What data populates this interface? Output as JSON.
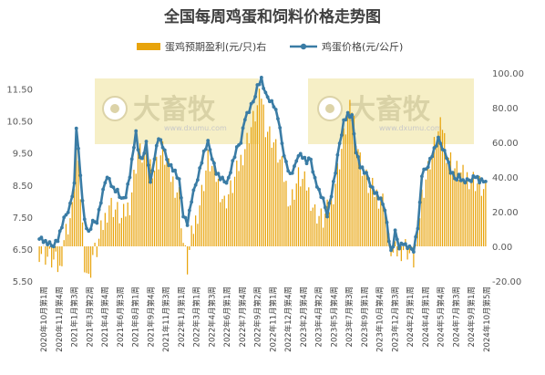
{
  "chart_data": {
    "type": "bar+line",
    "title": "全国每周鸡蛋和饲料价格走势图",
    "legend": {
      "bar": "蛋鸡预期盈利(元/只)右",
      "line": "鸡蛋价格(元/公斤)",
      "bar_color": "#e8a40c",
      "line_color": "#3a7ca5"
    },
    "watermark": {
      "brand": "大畜牧",
      "url": "www.dxumu.com"
    },
    "left_axis": {
      "min": 5.5,
      "max": 12,
      "ticks": [
        "11.50",
        "10.50",
        "9.50",
        "8.50",
        "7.50",
        "6.50",
        "5.50"
      ],
      "tick_values": [
        11.5,
        10.5,
        9.5,
        8.5,
        7.5,
        6.5,
        5.5
      ]
    },
    "right_axis": {
      "min": -20,
      "max": 100,
      "ticks": [
        "100.00",
        "80.00",
        "60.00",
        "40.00",
        "20.00",
        "0.00",
        "-20.00"
      ],
      "tick_values": [
        100,
        80,
        60,
        40,
        20,
        0,
        -20
      ]
    },
    "x_labels": [
      "2020年10月第1周",
      "2020年11月第4周",
      "2021年1月第3周",
      "2021年3月第2周",
      "2021年4月第4周",
      "2021年6月第3周",
      "2021年8月第1周",
      "2021年9月第4周",
      "2021年11月第3周",
      "2022年1月第1周",
      "2022年3月第1周",
      "2022年4月第3周",
      "2022年6月第1周",
      "2022年7月第4周",
      "2022年9月第2周",
      "2022年11月第1周",
      "2022年12月第4周",
      "2023年2月第4周",
      "2023年4月第2周",
      "2023年5月第4周",
      "2023年7月第3周",
      "2023年9月第1周",
      "2023年10月第4周",
      "2023年12月第3周",
      "2024年2月第1周",
      "2024年4月第1周",
      "2024年5月第4周",
      "2024年7月第3周",
      "2024年9月第1周",
      "2024年10月第5周"
    ],
    "weeks": 218,
    "egg_price": [
      [
        0,
        6.9
      ],
      [
        3,
        6.7
      ],
      [
        6,
        6.6
      ],
      [
        9,
        6.8
      ],
      [
        12,
        7.4
      ],
      [
        15,
        7.9
      ],
      [
        17,
        8.5
      ],
      [
        18,
        10.3
      ],
      [
        20,
        8.8
      ],
      [
        22,
        7.4
      ],
      [
        24,
        7.0
      ],
      [
        26,
        7.3
      ],
      [
        28,
        7.4
      ],
      [
        30,
        8.0
      ],
      [
        32,
        8.6
      ],
      [
        34,
        8.7
      ],
      [
        36,
        8.4
      ],
      [
        38,
        8.3
      ],
      [
        40,
        8.0
      ],
      [
        42,
        8.2
      ],
      [
        44,
        8.8
      ],
      [
        46,
        9.7
      ],
      [
        47,
        10.1
      ],
      [
        48,
        9.6
      ],
      [
        50,
        9.3
      ],
      [
        52,
        9.8
      ],
      [
        54,
        8.5
      ],
      [
        56,
        9.4
      ],
      [
        58,
        10.0
      ],
      [
        60,
        9.7
      ],
      [
        62,
        9.3
      ],
      [
        64,
        9.1
      ],
      [
        66,
        8.9
      ],
      [
        68,
        8.6
      ],
      [
        70,
        7.6
      ],
      [
        72,
        7.3
      ],
      [
        74,
        8.0
      ],
      [
        76,
        8.5
      ],
      [
        78,
        9.0
      ],
      [
        80,
        9.5
      ],
      [
        82,
        9.8
      ],
      [
        84,
        9.4
      ],
      [
        86,
        8.9
      ],
      [
        88,
        8.7
      ],
      [
        90,
        8.6
      ],
      [
        92,
        8.7
      ],
      [
        94,
        9.2
      ],
      [
        96,
        9.6
      ],
      [
        98,
        9.9
      ],
      [
        100,
        10.6
      ],
      [
        102,
        10.8
      ],
      [
        104,
        11.1
      ],
      [
        106,
        11.6
      ],
      [
        108,
        11.8
      ],
      [
        110,
        11.3
      ],
      [
        112,
        11.2
      ],
      [
        114,
        11.0
      ],
      [
        116,
        10.6
      ],
      [
        118,
        9.8
      ],
      [
        120,
        9.2
      ],
      [
        122,
        8.8
      ],
      [
        124,
        9.0
      ],
      [
        126,
        9.5
      ],
      [
        128,
        9.4
      ],
      [
        130,
        9.2
      ],
      [
        132,
        9.3
      ],
      [
        134,
        8.7
      ],
      [
        136,
        8.3
      ],
      [
        138,
        8.0
      ],
      [
        140,
        7.6
      ],
      [
        142,
        8.2
      ],
      [
        144,
        8.9
      ],
      [
        146,
        9.8
      ],
      [
        148,
        10.5
      ],
      [
        150,
        10.7
      ],
      [
        152,
        10.6
      ],
      [
        154,
        9.6
      ],
      [
        156,
        9.1
      ],
      [
        158,
        8.9
      ],
      [
        160,
        8.7
      ],
      [
        162,
        8.4
      ],
      [
        164,
        8.2
      ],
      [
        166,
        8.0
      ],
      [
        168,
        7.8
      ],
      [
        170,
        6.8
      ],
      [
        171,
        6.4
      ],
      [
        172,
        6.6
      ],
      [
        173,
        7.0
      ],
      [
        175,
        6.6
      ],
      [
        177,
        6.7
      ],
      [
        178,
        6.6
      ],
      [
        180,
        6.5
      ],
      [
        182,
        6.5
      ],
      [
        184,
        7.2
      ],
      [
        185,
        7.9
      ],
      [
        186,
        8.8
      ],
      [
        188,
        9.0
      ],
      [
        190,
        9.3
      ],
      [
        192,
        9.6
      ],
      [
        194,
        9.9
      ],
      [
        196,
        9.7
      ],
      [
        198,
        9.4
      ],
      [
        200,
        8.9
      ],
      [
        202,
        8.7
      ],
      [
        204,
        8.8
      ],
      [
        206,
        8.6
      ],
      [
        208,
        8.6
      ],
      [
        210,
        8.7
      ],
      [
        212,
        8.8
      ],
      [
        214,
        8.6
      ],
      [
        216,
        8.6
      ],
      [
        217,
        8.7
      ]
    ],
    "profit_series": [
      [
        0,
        -2
      ],
      [
        4,
        -6
      ],
      [
        8,
        -10
      ],
      [
        10,
        -14
      ],
      [
        12,
        5
      ],
      [
        16,
        20
      ],
      [
        18,
        55
      ],
      [
        20,
        30
      ],
      [
        22,
        -8
      ],
      [
        24,
        -20
      ],
      [
        26,
        -5
      ],
      [
        28,
        -2
      ],
      [
        30,
        8
      ],
      [
        34,
        25
      ],
      [
        38,
        20
      ],
      [
        40,
        15
      ],
      [
        44,
        25
      ],
      [
        48,
        55
      ],
      [
        52,
        50
      ],
      [
        56,
        45
      ],
      [
        60,
        55
      ],
      [
        64,
        40
      ],
      [
        68,
        30
      ],
      [
        70,
        2
      ],
      [
        72,
        -12
      ],
      [
        74,
        5
      ],
      [
        78,
        25
      ],
      [
        82,
        50
      ],
      [
        86,
        40
      ],
      [
        90,
        25
      ],
      [
        94,
        35
      ],
      [
        98,
        50
      ],
      [
        102,
        65
      ],
      [
        106,
        80
      ],
      [
        108,
        88
      ],
      [
        110,
        70
      ],
      [
        114,
        60
      ],
      [
        118,
        45
      ],
      [
        122,
        25
      ],
      [
        126,
        40
      ],
      [
        130,
        35
      ],
      [
        134,
        20
      ],
      [
        138,
        15
      ],
      [
        142,
        25
      ],
      [
        146,
        50
      ],
      [
        150,
        75
      ],
      [
        152,
        80
      ],
      [
        156,
        50
      ],
      [
        160,
        35
      ],
      [
        164,
        30
      ],
      [
        168,
        25
      ],
      [
        170,
        2
      ],
      [
        172,
        -5
      ],
      [
        174,
        -3
      ],
      [
        178,
        0
      ],
      [
        182,
        -8
      ],
      [
        184,
        8
      ],
      [
        186,
        30
      ],
      [
        190,
        50
      ],
      [
        194,
        65
      ],
      [
        196,
        70
      ],
      [
        198,
        55
      ],
      [
        202,
        45
      ],
      [
        206,
        40
      ],
      [
        210,
        40
      ],
      [
        214,
        35
      ],
      [
        217,
        30
      ]
    ]
  }
}
